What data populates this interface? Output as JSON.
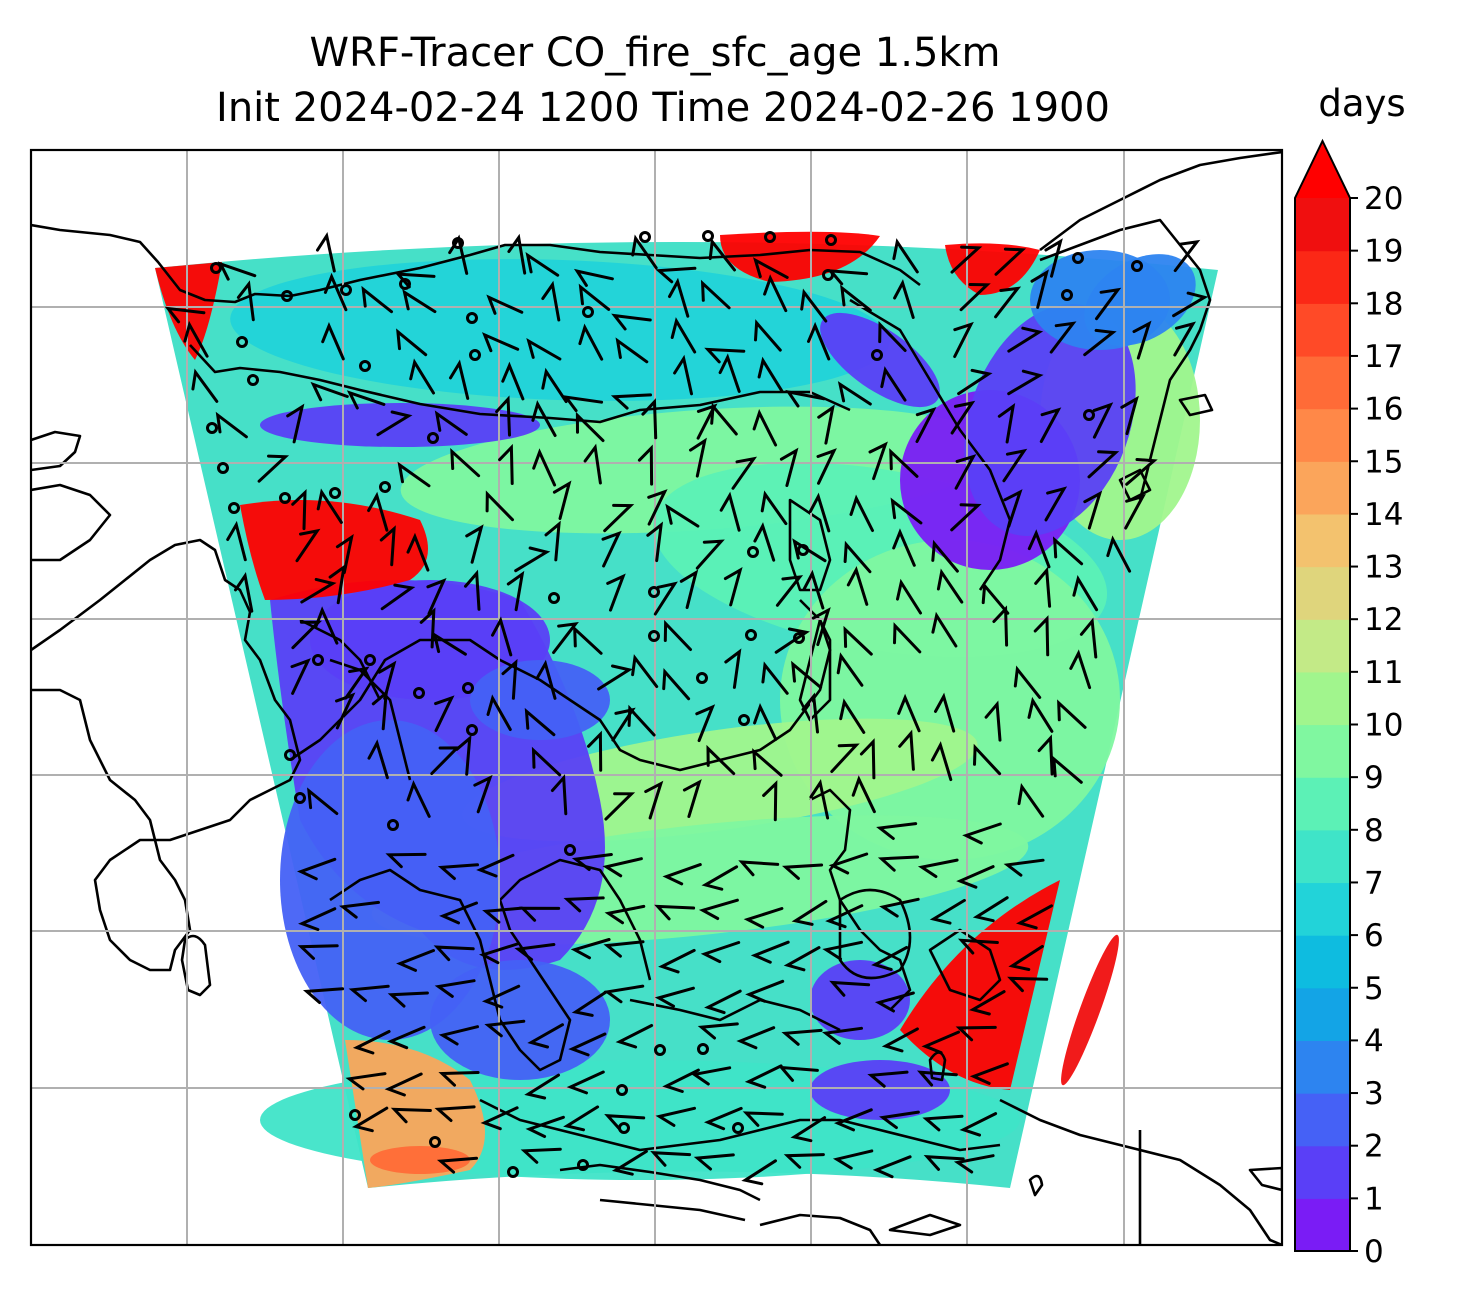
{
  "chart_data": {
    "type": "heatmap",
    "title": "WRF-Tracer CO_fire_sfc_age 1.5km",
    "subtitle": "Init 2024-02-24 1200 Time 2024-02-26 1900",
    "variable": "CO_fire_sfc_age",
    "colorbar": {
      "label": "days",
      "min": 0,
      "max": 20,
      "extend": "max",
      "ticks": [
        0,
        1,
        2,
        3,
        4,
        5,
        6,
        7,
        8,
        9,
        10,
        11,
        12,
        13,
        14,
        15,
        16,
        17,
        18,
        19,
        20
      ],
      "tick_labels": [
        "0",
        "1",
        "2",
        "3",
        "4",
        "5",
        "6",
        "7",
        "8",
        "9",
        "10",
        "11",
        "12",
        "13",
        "14",
        "15",
        "16",
        "17",
        "18",
        "19",
        "20"
      ],
      "colors": [
        "#7a1cf5",
        "#5a3ff7",
        "#4561f6",
        "#2d84f0",
        "#13a4e6",
        "#0ebce0",
        "#22d3d9",
        "#3fe4c8",
        "#5cf1b6",
        "#80f7a0",
        "#a1f58d",
        "#c3ea87",
        "#dfd57c",
        "#f3c26e",
        "#fba55b",
        "#ff8848",
        "#ff6b37",
        "#ff4a27",
        "#fb2816",
        "#f00f0f"
      ],
      "over_color": "#ff0000"
    },
    "map": {
      "gridlines": true,
      "coastlines": true,
      "wind_barbs": true
    }
  }
}
